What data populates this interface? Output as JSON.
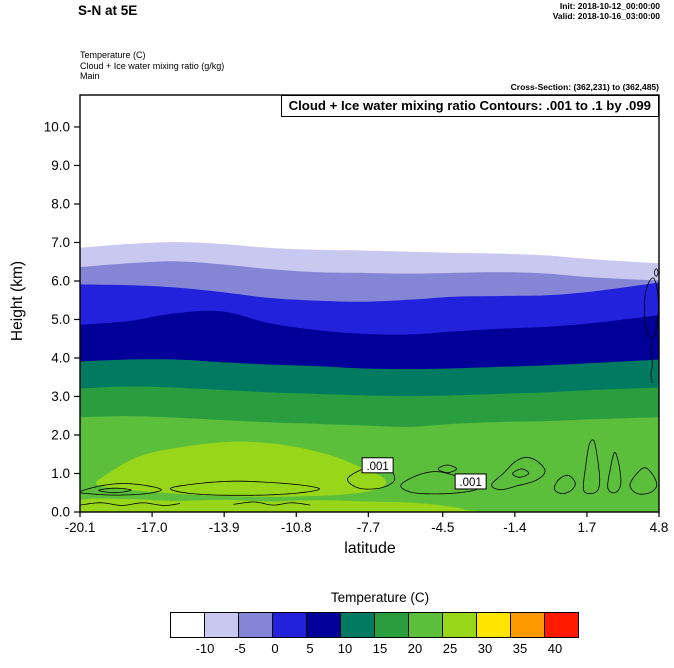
{
  "header": {
    "title": "S-N at 5E",
    "init": "Init: 2018-10-12_00:00:00",
    "valid": "Valid: 2018-10-16_03:00:00",
    "field_lines": [
      "Temperature  (C)",
      "Cloud + Ice water mixing ratio   (g/kg)",
      "Main"
    ],
    "cross_section": "Cross-Section: (362,231) to (362,485)"
  },
  "chart_data": {
    "type": "heatmap",
    "title": "Cloud + Ice water mixing ratio Contours: .001 to .1 by .099",
    "xlabel": "latitude",
    "ylabel": "Height (km)",
    "xlim": [
      -20.1,
      4.8
    ],
    "ylim": [
      0,
      10.83
    ],
    "grid": false,
    "xticks": {
      "values": [
        -20.1,
        -17.0,
        -13.9,
        -10.8,
        -7.7,
        -4.5,
        -1.4,
        1.7,
        4.8
      ],
      "labels": [
        "-20.1",
        "-17.0",
        "-13.9",
        "-10.8",
        "-7.7",
        "-4.5",
        "-1.4",
        "1.7",
        "4.8"
      ]
    },
    "yticks": {
      "values": [
        0,
        1,
        2,
        3,
        4,
        5,
        6,
        7,
        8,
        9,
        10
      ],
      "labels": [
        "0.0",
        "1.0",
        "2.0",
        "3.0",
        "4.0",
        "5.0",
        "6.0",
        "7.0",
        "8.0",
        "9.0",
        "10.0"
      ]
    },
    "temperature_fill": {
      "field": "Temperature (C)",
      "xs": [
        -20.1,
        -18,
        -16,
        -14,
        -12,
        -10,
        -8,
        -6,
        -4,
        -2,
        0,
        2,
        4.8
      ],
      "boundaries": [
        {
          "temp_c": -10,
          "heights": [
            6.85,
            6.95,
            7.0,
            6.95,
            6.85,
            6.8,
            6.78,
            6.75,
            6.72,
            6.7,
            6.65,
            6.55,
            6.45
          ]
        },
        {
          "temp_c": -5,
          "heights": [
            6.35,
            6.45,
            6.5,
            6.42,
            6.3,
            6.22,
            6.2,
            6.18,
            6.2,
            6.22,
            6.18,
            6.08,
            6.0
          ]
        },
        {
          "temp_c": 0,
          "heights": [
            5.9,
            5.88,
            5.82,
            5.7,
            5.55,
            5.48,
            5.45,
            5.5,
            5.58,
            5.6,
            5.62,
            5.72,
            5.95
          ]
        },
        {
          "temp_c": 5,
          "heights": [
            4.85,
            4.95,
            5.15,
            5.2,
            4.9,
            4.72,
            4.62,
            4.6,
            4.68,
            4.75,
            4.8,
            4.9,
            5.1
          ]
        },
        {
          "temp_c": 10,
          "heights": [
            3.9,
            3.95,
            3.95,
            3.88,
            3.82,
            3.78,
            3.72,
            3.7,
            3.72,
            3.76,
            3.8,
            3.86,
            3.95
          ]
        },
        {
          "temp_c": 15,
          "heights": [
            3.2,
            3.25,
            3.22,
            3.16,
            3.1,
            3.06,
            3.02,
            3.0,
            3.02,
            3.06,
            3.1,
            3.16,
            3.22
          ]
        },
        {
          "temp_c": 20,
          "heights": [
            2.45,
            2.48,
            2.44,
            2.38,
            2.32,
            2.28,
            2.24,
            2.2,
            2.28,
            2.33,
            2.35,
            2.4,
            2.45
          ]
        }
      ],
      "band_colors": [
        "#c8c8f0",
        "#8585d6",
        "#2222dd",
        "#000099",
        "#007a60",
        "#2a9d3f",
        "#5cbf3c"
      ],
      "surface_patches": [
        {
          "temp_range": "25 to 30",
          "color": "#97d618",
          "polygon": [
            [
              -19.0,
              0.95
            ],
            [
              -17.5,
              1.45
            ],
            [
              -15.5,
              1.7
            ],
            [
              -13.5,
              1.82
            ],
            [
              -11.5,
              1.75
            ],
            [
              -9.5,
              1.5
            ],
            [
              -8.0,
              1.15
            ],
            [
              -7.0,
              0.85
            ],
            [
              -7.3,
              0.6
            ],
            [
              -9.0,
              0.45
            ],
            [
              -12.0,
              0.4
            ],
            [
              -15.0,
              0.45
            ],
            [
              -17.5,
              0.55
            ],
            [
              -19.3,
              0.7
            ]
          ]
        },
        {
          "temp_range": "25 to 30",
          "color": "#97d618",
          "polygon": [
            [
              -20.1,
              -0.1
            ],
            [
              -20.1,
              0.3
            ],
            [
              -18,
              0.33
            ],
            [
              -16,
              0.28
            ],
            [
              -14,
              0.31
            ],
            [
              -12,
              0.27
            ],
            [
              -10,
              0.3
            ],
            [
              -8,
              0.27
            ],
            [
              -6,
              0.24
            ],
            [
              -4.5,
              0.16
            ],
            [
              -3.5,
              0.05
            ],
            [
              -3.3,
              -0.1
            ]
          ]
        }
      ]
    },
    "cloud_contours": {
      "levels_note": ".001 to .1 by .099",
      "line_color": "#000000",
      "labels": [
        {
          "text": ".001",
          "x": -7.3,
          "y": 1.2
        },
        {
          "text": ".001",
          "x": -3.3,
          "y": 0.78
        }
      ],
      "paths": [
        {
          "closed": true,
          "points": [
            [
              -20.1,
              0.52
            ],
            [
              -19.2,
              0.68
            ],
            [
              -18.2,
              0.74
            ],
            [
              -17.2,
              0.68
            ],
            [
              -16.6,
              0.58
            ],
            [
              -17.2,
              0.48
            ],
            [
              -18.4,
              0.44
            ],
            [
              -19.4,
              0.46
            ]
          ]
        },
        {
          "closed": true,
          "points": [
            [
              -19.3,
              0.56
            ],
            [
              -18.6,
              0.62
            ],
            [
              -17.9,
              0.57
            ],
            [
              -18.6,
              0.5
            ]
          ]
        },
        {
          "closed": true,
          "points": [
            [
              -16.2,
              0.62
            ],
            [
              -15.0,
              0.74
            ],
            [
              -13.5,
              0.8
            ],
            [
              -12.0,
              0.77
            ],
            [
              -10.6,
              0.7
            ],
            [
              -9.8,
              0.6
            ],
            [
              -10.6,
              0.5
            ],
            [
              -12.2,
              0.44
            ],
            [
              -14.2,
              0.44
            ],
            [
              -15.6,
              0.5
            ]
          ]
        },
        {
          "closed": true,
          "points": [
            [
              -8.6,
              0.85
            ],
            [
              -8.0,
              1.1
            ],
            [
              -7.3,
              1.2
            ],
            [
              -6.7,
              1.05
            ],
            [
              -6.6,
              0.8
            ],
            [
              -7.2,
              0.62
            ],
            [
              -8.1,
              0.62
            ]
          ]
        },
        {
          "closed": true,
          "points": [
            [
              -6.3,
              0.7
            ],
            [
              -5.6,
              0.95
            ],
            [
              -4.8,
              1.05
            ],
            [
              -4.0,
              0.95
            ],
            [
              -3.3,
              0.78
            ],
            [
              -3.0,
              0.6
            ],
            [
              -3.8,
              0.5
            ],
            [
              -5.0,
              0.47
            ],
            [
              -5.9,
              0.52
            ]
          ]
        },
        {
          "closed": true,
          "points": [
            [
              -4.7,
              1.12
            ],
            [
              -4.3,
              1.22
            ],
            [
              -3.9,
              1.12
            ],
            [
              -4.3,
              1.02
            ]
          ]
        },
        {
          "closed": true,
          "points": [
            [
              -2.4,
              0.7
            ],
            [
              -1.9,
              1.0
            ],
            [
              -1.4,
              1.3
            ],
            [
              -0.9,
              1.42
            ],
            [
              -0.4,
              1.3
            ],
            [
              -0.1,
              1.05
            ],
            [
              -0.5,
              0.82
            ],
            [
              -1.3,
              0.68
            ],
            [
              -2.0,
              0.58
            ]
          ]
        },
        {
          "closed": true,
          "points": [
            [
              -1.5,
              1.0
            ],
            [
              -1.1,
              1.12
            ],
            [
              -0.8,
              1.0
            ],
            [
              -1.2,
              0.9
            ]
          ]
        },
        {
          "closed": true,
          "points": [
            [
              0.3,
              0.6
            ],
            [
              0.5,
              0.85
            ],
            [
              0.9,
              0.95
            ],
            [
              1.2,
              0.75
            ],
            [
              1.0,
              0.55
            ],
            [
              0.6,
              0.48
            ]
          ]
        },
        {
          "closed": true,
          "points": [
            [
              1.55,
              0.6
            ],
            [
              1.65,
              1.2
            ],
            [
              1.8,
              1.75
            ],
            [
              2.0,
              1.85
            ],
            [
              2.15,
              1.4
            ],
            [
              2.25,
              0.85
            ],
            [
              2.15,
              0.55
            ],
            [
              1.8,
              0.48
            ]
          ]
        },
        {
          "closed": true,
          "points": [
            [
              2.6,
              0.62
            ],
            [
              2.7,
              1.1
            ],
            [
              2.9,
              1.55
            ],
            [
              3.1,
              1.15
            ],
            [
              3.15,
              0.7
            ],
            [
              2.9,
              0.5
            ]
          ]
        },
        {
          "closed": true,
          "points": [
            [
              3.55,
              0.7
            ],
            [
              3.85,
              1.0
            ],
            [
              4.2,
              1.15
            ],
            [
              4.55,
              0.95
            ],
            [
              4.7,
              0.68
            ],
            [
              4.4,
              0.5
            ],
            [
              3.85,
              0.48
            ]
          ]
        },
        {
          "closed": true,
          "points": [
            [
              4.35,
              4.6
            ],
            [
              4.2,
              5.0
            ],
            [
              4.18,
              5.5
            ],
            [
              4.32,
              5.9
            ],
            [
              4.55,
              6.08
            ],
            [
              4.72,
              5.8
            ],
            [
              4.78,
              5.3
            ],
            [
              4.7,
              4.8
            ],
            [
              4.55,
              4.52
            ]
          ]
        },
        {
          "closed": false,
          "points": [
            [
              4.5,
              4.45
            ],
            [
              4.42,
              4.15
            ],
            [
              4.52,
              3.85
            ],
            [
              4.45,
              3.55
            ],
            [
              4.52,
              3.35
            ]
          ]
        },
        {
          "closed": false,
          "points": [
            [
              -20.1,
              0.18
            ],
            [
              -19.2,
              0.24
            ],
            [
              -18.3,
              0.17
            ],
            [
              -17.4,
              0.24
            ],
            [
              -16.5,
              0.17
            ],
            [
              -15.8,
              0.22
            ]
          ]
        },
        {
          "closed": false,
          "points": [
            [
              -13.5,
              0.2
            ],
            [
              -12.6,
              0.26
            ],
            [
              -11.8,
              0.18
            ],
            [
              -11.0,
              0.24
            ],
            [
              -10.2,
              0.18
            ]
          ]
        },
        {
          "closed": true,
          "points": [
            [
              4.6,
              6.22
            ],
            [
              4.68,
              6.32
            ],
            [
              4.76,
              6.22
            ],
            [
              4.68,
              6.12
            ]
          ]
        }
      ]
    },
    "colorbar": {
      "title": "Temperature  (C)",
      "colors": [
        "#ffffff",
        "#c8c8f0",
        "#8585d6",
        "#2222dd",
        "#000099",
        "#007a60",
        "#2a9d3f",
        "#5cbf3c",
        "#97d618",
        "#ffe400",
        "#ff9900",
        "#ff1a00"
      ],
      "tick_labels": [
        "-10",
        "-5",
        "0",
        "5",
        "10",
        "15",
        "20",
        "25",
        "30",
        "35",
        "40"
      ]
    }
  }
}
